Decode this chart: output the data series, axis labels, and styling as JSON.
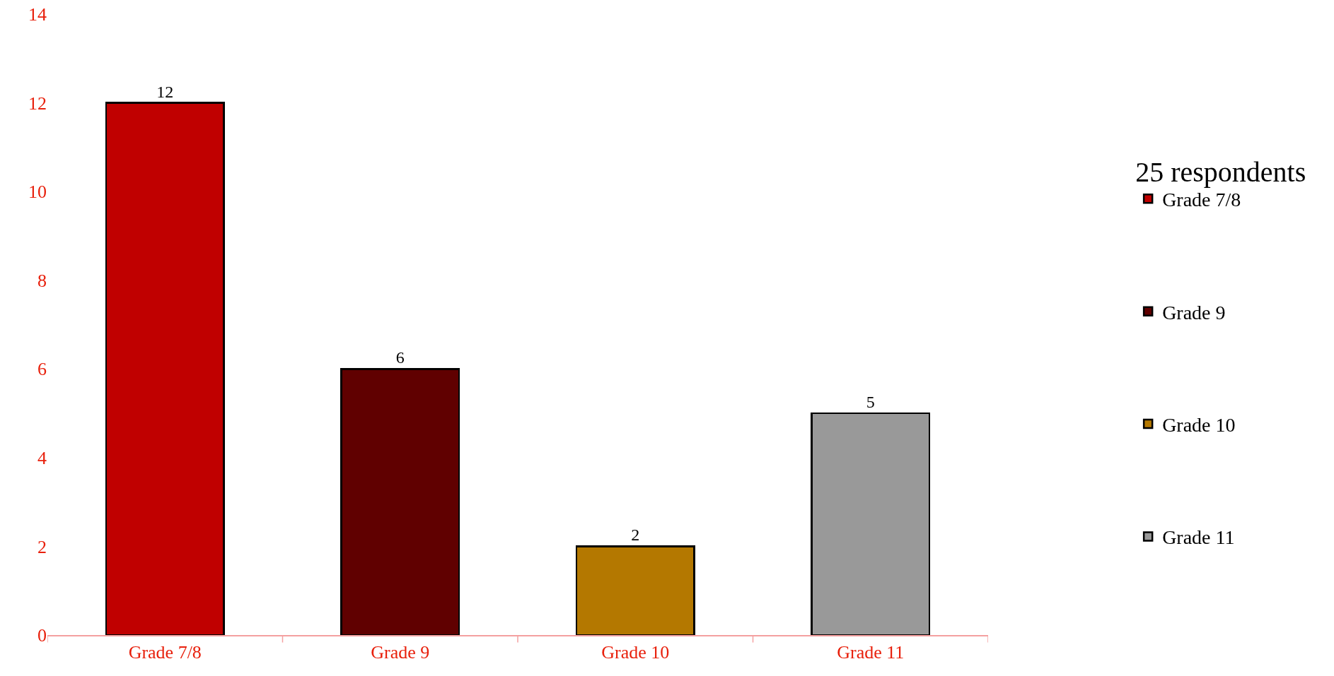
{
  "chart_data": {
    "type": "bar",
    "categories": [
      "Grade 7/8",
      "Grade 9",
      "Grade 10",
      "Grade 11"
    ],
    "stacked": true,
    "series": [
      {
        "name": "Grade 7/8",
        "color": "#c00000",
        "values": [
          12,
          null,
          null,
          null
        ]
      },
      {
        "name": "Grade 9",
        "color": "#600000",
        "values": [
          null,
          6,
          null,
          null
        ]
      },
      {
        "name": "Grade 10",
        "color": "#b47800",
        "values": [
          null,
          null,
          2,
          null
        ]
      },
      {
        "name": "Grade 11",
        "color": "#999999",
        "values": [
          null,
          null,
          null,
          5
        ]
      }
    ],
    "ylim": [
      0,
      14
    ],
    "yticks": [
      0,
      2,
      4,
      6,
      8,
      10,
      12,
      14
    ],
    "data_labels": true,
    "legend": "right",
    "legend_title": "25 respondents"
  }
}
